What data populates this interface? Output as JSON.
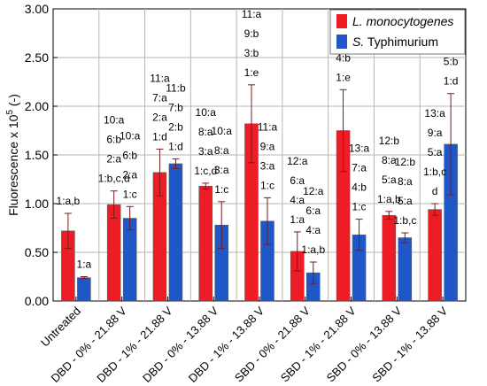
{
  "chart_data": {
    "type": "bar",
    "ylabel": "Fluorescence x 10",
    "ylabel_superscript": "5",
    "ylabel_suffix": " (-)",
    "ylim": [
      0,
      3
    ],
    "yticks": [
      "0.00",
      "0.50",
      "1.00",
      "1.50",
      "2.00",
      "2.50",
      "3.00"
    ],
    "ytick_values": [
      0,
      0.5,
      1.0,
      1.5,
      2.0,
      2.5,
      3.0
    ],
    "grid": true,
    "legend_position": "top-right",
    "categories": [
      "Untreated",
      "DBD - 0% - 21.88 V",
      "DBD - 1% - 21.88 V",
      "DBD - 0% - 13.88 V",
      "DBD - 1% - 13.88 V",
      "SBD - 0% - 21.88 V",
      "SBD - 1% - 21.88 V",
      "SBD - 0% - 13.88 V",
      "SBD - 1% - 13.88 V"
    ],
    "series": [
      {
        "name_italic": "L. monocytogenes",
        "name_plain": "",
        "color": "#ee1c25",
        "values": [
          0.72,
          0.99,
          1.32,
          1.18,
          1.82,
          0.51,
          1.75,
          0.88,
          0.94
        ],
        "errors": [
          0.18,
          0.14,
          0.24,
          0.03,
          0.4,
          0.2,
          0.42,
          0.04,
          0.06
        ],
        "labels": [
          [
            "1:a,b"
          ],
          [
            "10:a",
            "6:b",
            "2:a",
            "1:b,c,d"
          ],
          [
            "11:a",
            "7:a",
            "2:a",
            "1:d"
          ],
          [
            "10:a",
            "8:a",
            "3:a",
            "1:c,d"
          ],
          [
            "11:a",
            "9:b",
            "3:b",
            "1:e"
          ],
          [
            "12:a",
            "6:a",
            "4:a",
            "1:a"
          ],
          [
            "13:b",
            "7:a",
            "4:b",
            "1:e"
          ],
          [
            "12:b",
            "8:a",
            "5:a",
            "1:a,b"
          ],
          [
            "13:a",
            "9:a",
            "5:a",
            "1:b,c",
            "d"
          ]
        ]
      },
      {
        "name_italic": "S.",
        "name_plain": " Typhimurium",
        "color": "#1f56c8",
        "values": [
          0.24,
          0.85,
          1.41,
          0.78,
          0.82,
          0.29,
          0.68,
          0.65,
          1.61
        ],
        "errors": [
          0.01,
          0.12,
          0.05,
          0.24,
          0.24,
          0.11,
          0.16,
          0.05,
          0.52
        ],
        "labels": [
          [
            "1:a"
          ],
          [
            "10:a",
            "6:b",
            "2:a",
            "1:c"
          ],
          [
            "11:b",
            "7:b",
            "2:b",
            "1:d"
          ],
          [
            "10:a",
            "8:a",
            "3:a",
            "1:c"
          ],
          [
            "11:a",
            "9:a",
            "3:a",
            "1:c"
          ],
          [
            "12:a",
            "6:a",
            "4:a",
            "1:a,b"
          ],
          [
            "13:a",
            "7:a",
            "4:b",
            "1:c"
          ],
          [
            "12:b",
            "8:a",
            "5:a",
            "1:b,c"
          ],
          [
            "13:b",
            "9:a",
            "5:b",
            "1:d"
          ]
        ]
      }
    ]
  }
}
